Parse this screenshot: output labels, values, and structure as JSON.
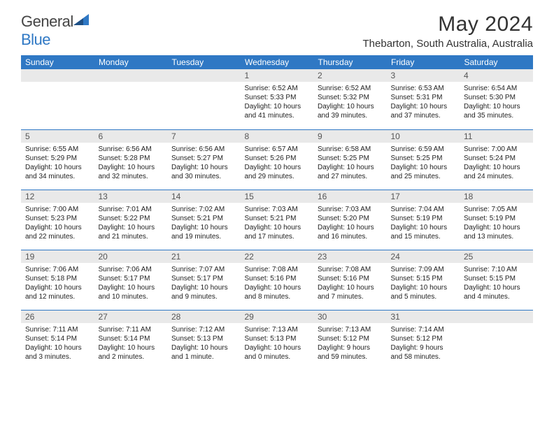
{
  "brand": {
    "name_a": "General",
    "name_b": "Blue"
  },
  "header": {
    "title": "May 2024",
    "location": "Thebarton, South Australia, Australia"
  },
  "colors": {
    "accent": "#2f78c4",
    "daybar": "#e9e9e9",
    "text": "#1a1a1a"
  },
  "weekdays": [
    "Sunday",
    "Monday",
    "Tuesday",
    "Wednesday",
    "Thursday",
    "Friday",
    "Saturday"
  ],
  "weeks": [
    [
      {
        "n": "",
        "sr": "",
        "ss": "",
        "dl": ""
      },
      {
        "n": "",
        "sr": "",
        "ss": "",
        "dl": ""
      },
      {
        "n": "",
        "sr": "",
        "ss": "",
        "dl": ""
      },
      {
        "n": "1",
        "sr": "Sunrise: 6:52 AM",
        "ss": "Sunset: 5:33 PM",
        "dl": "Daylight: 10 hours and 41 minutes."
      },
      {
        "n": "2",
        "sr": "Sunrise: 6:52 AM",
        "ss": "Sunset: 5:32 PM",
        "dl": "Daylight: 10 hours and 39 minutes."
      },
      {
        "n": "3",
        "sr": "Sunrise: 6:53 AM",
        "ss": "Sunset: 5:31 PM",
        "dl": "Daylight: 10 hours and 37 minutes."
      },
      {
        "n": "4",
        "sr": "Sunrise: 6:54 AM",
        "ss": "Sunset: 5:30 PM",
        "dl": "Daylight: 10 hours and 35 minutes."
      }
    ],
    [
      {
        "n": "5",
        "sr": "Sunrise: 6:55 AM",
        "ss": "Sunset: 5:29 PM",
        "dl": "Daylight: 10 hours and 34 minutes."
      },
      {
        "n": "6",
        "sr": "Sunrise: 6:56 AM",
        "ss": "Sunset: 5:28 PM",
        "dl": "Daylight: 10 hours and 32 minutes."
      },
      {
        "n": "7",
        "sr": "Sunrise: 6:56 AM",
        "ss": "Sunset: 5:27 PM",
        "dl": "Daylight: 10 hours and 30 minutes."
      },
      {
        "n": "8",
        "sr": "Sunrise: 6:57 AM",
        "ss": "Sunset: 5:26 PM",
        "dl": "Daylight: 10 hours and 29 minutes."
      },
      {
        "n": "9",
        "sr": "Sunrise: 6:58 AM",
        "ss": "Sunset: 5:25 PM",
        "dl": "Daylight: 10 hours and 27 minutes."
      },
      {
        "n": "10",
        "sr": "Sunrise: 6:59 AM",
        "ss": "Sunset: 5:25 PM",
        "dl": "Daylight: 10 hours and 25 minutes."
      },
      {
        "n": "11",
        "sr": "Sunrise: 7:00 AM",
        "ss": "Sunset: 5:24 PM",
        "dl": "Daylight: 10 hours and 24 minutes."
      }
    ],
    [
      {
        "n": "12",
        "sr": "Sunrise: 7:00 AM",
        "ss": "Sunset: 5:23 PM",
        "dl": "Daylight: 10 hours and 22 minutes."
      },
      {
        "n": "13",
        "sr": "Sunrise: 7:01 AM",
        "ss": "Sunset: 5:22 PM",
        "dl": "Daylight: 10 hours and 21 minutes."
      },
      {
        "n": "14",
        "sr": "Sunrise: 7:02 AM",
        "ss": "Sunset: 5:21 PM",
        "dl": "Daylight: 10 hours and 19 minutes."
      },
      {
        "n": "15",
        "sr": "Sunrise: 7:03 AM",
        "ss": "Sunset: 5:21 PM",
        "dl": "Daylight: 10 hours and 17 minutes."
      },
      {
        "n": "16",
        "sr": "Sunrise: 7:03 AM",
        "ss": "Sunset: 5:20 PM",
        "dl": "Daylight: 10 hours and 16 minutes."
      },
      {
        "n": "17",
        "sr": "Sunrise: 7:04 AM",
        "ss": "Sunset: 5:19 PM",
        "dl": "Daylight: 10 hours and 15 minutes."
      },
      {
        "n": "18",
        "sr": "Sunrise: 7:05 AM",
        "ss": "Sunset: 5:19 PM",
        "dl": "Daylight: 10 hours and 13 minutes."
      }
    ],
    [
      {
        "n": "19",
        "sr": "Sunrise: 7:06 AM",
        "ss": "Sunset: 5:18 PM",
        "dl": "Daylight: 10 hours and 12 minutes."
      },
      {
        "n": "20",
        "sr": "Sunrise: 7:06 AM",
        "ss": "Sunset: 5:17 PM",
        "dl": "Daylight: 10 hours and 10 minutes."
      },
      {
        "n": "21",
        "sr": "Sunrise: 7:07 AM",
        "ss": "Sunset: 5:17 PM",
        "dl": "Daylight: 10 hours and 9 minutes."
      },
      {
        "n": "22",
        "sr": "Sunrise: 7:08 AM",
        "ss": "Sunset: 5:16 PM",
        "dl": "Daylight: 10 hours and 8 minutes."
      },
      {
        "n": "23",
        "sr": "Sunrise: 7:08 AM",
        "ss": "Sunset: 5:16 PM",
        "dl": "Daylight: 10 hours and 7 minutes."
      },
      {
        "n": "24",
        "sr": "Sunrise: 7:09 AM",
        "ss": "Sunset: 5:15 PM",
        "dl": "Daylight: 10 hours and 5 minutes."
      },
      {
        "n": "25",
        "sr": "Sunrise: 7:10 AM",
        "ss": "Sunset: 5:15 PM",
        "dl": "Daylight: 10 hours and 4 minutes."
      }
    ],
    [
      {
        "n": "26",
        "sr": "Sunrise: 7:11 AM",
        "ss": "Sunset: 5:14 PM",
        "dl": "Daylight: 10 hours and 3 minutes."
      },
      {
        "n": "27",
        "sr": "Sunrise: 7:11 AM",
        "ss": "Sunset: 5:14 PM",
        "dl": "Daylight: 10 hours and 2 minutes."
      },
      {
        "n": "28",
        "sr": "Sunrise: 7:12 AM",
        "ss": "Sunset: 5:13 PM",
        "dl": "Daylight: 10 hours and 1 minute."
      },
      {
        "n": "29",
        "sr": "Sunrise: 7:13 AM",
        "ss": "Sunset: 5:13 PM",
        "dl": "Daylight: 10 hours and 0 minutes."
      },
      {
        "n": "30",
        "sr": "Sunrise: 7:13 AM",
        "ss": "Sunset: 5:12 PM",
        "dl": "Daylight: 9 hours and 59 minutes."
      },
      {
        "n": "31",
        "sr": "Sunrise: 7:14 AM",
        "ss": "Sunset: 5:12 PM",
        "dl": "Daylight: 9 hours and 58 minutes."
      },
      {
        "n": "",
        "sr": "",
        "ss": "",
        "dl": ""
      }
    ]
  ]
}
